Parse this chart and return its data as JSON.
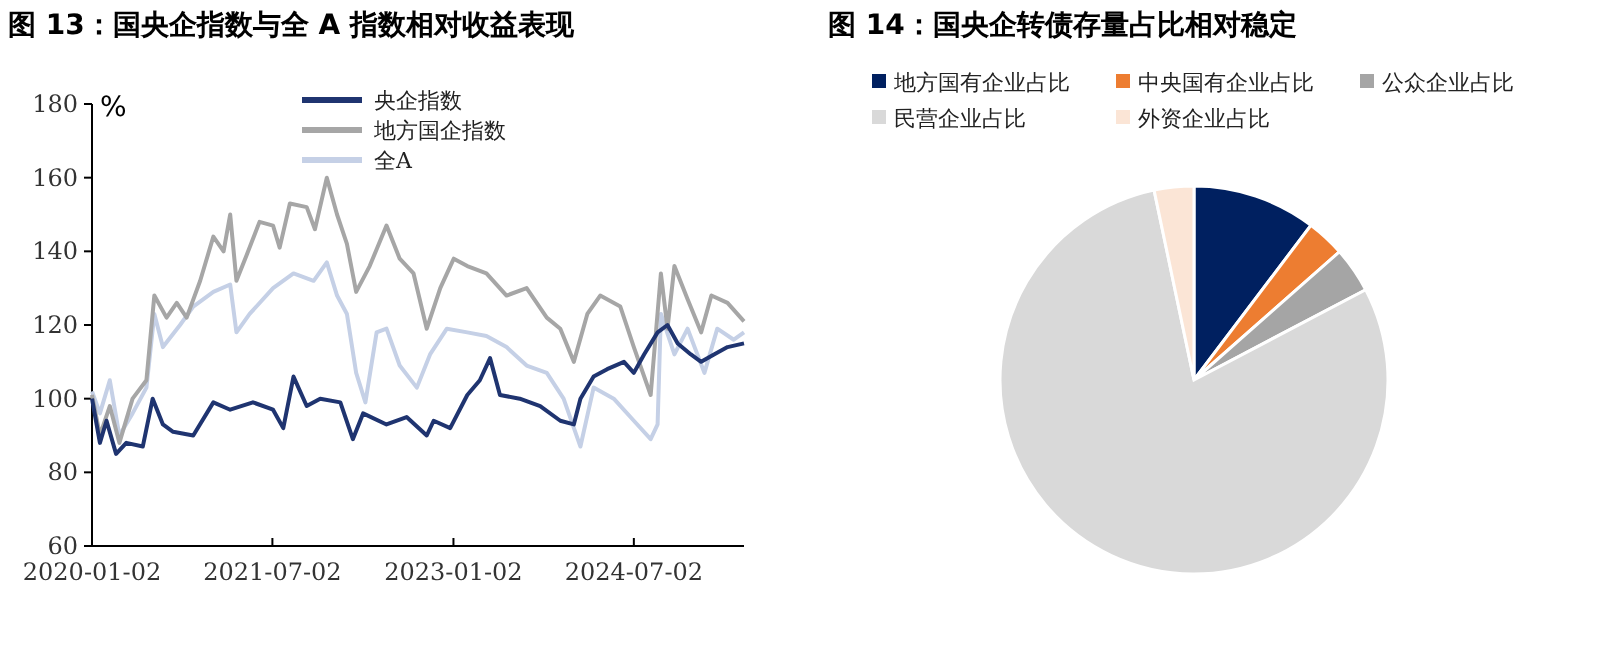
{
  "chart_data": [
    {
      "type": "line",
      "title": "图 13：国央企指数与全 A 指数相对收益表现",
      "ylabel": "%",
      "legend": "top",
      "grid": false,
      "xlim": [
        "2020-01-02",
        "2025-06-01"
      ],
      "xticks": [
        "2020-01-02",
        "2021-07-02",
        "2023-01-02",
        "2024-07-02"
      ],
      "ylim": [
        60,
        180
      ],
      "yticks": [
        60,
        80,
        100,
        120,
        140,
        160,
        180
      ],
      "series": [
        {
          "name": "央企指数",
          "color": "#1f3470",
          "x": [
            "2020-01-02",
            "2020-01-26",
            "2020-02-15",
            "2020-03-15",
            "2020-04-15",
            "2020-06-04",
            "2020-07-04",
            "2020-08-04",
            "2020-09-04",
            "2020-11-04",
            "2021-01-04",
            "2021-02-24",
            "2021-05-04",
            "2021-07-04",
            "2021-08-04",
            "2021-09-04",
            "2021-10-14",
            "2021-11-24",
            "2022-01-24",
            "2022-03-03",
            "2022-04-03",
            "2022-06-13",
            "2022-08-13",
            "2022-10-13",
            "2022-11-03",
            "2022-12-23",
            "2023-02-13",
            "2023-03-23",
            "2023-04-23",
            "2023-05-23",
            "2023-07-22",
            "2023-09-22",
            "2023-11-22",
            "2024-01-02",
            "2024-01-22",
            "2024-03-02",
            "2024-04-12",
            "2024-06-02",
            "2024-07-02",
            "2024-08-02",
            "2024-09-12",
            "2024-10-12",
            "2024-11-12",
            "2024-12-22",
            "2025-01-22",
            "2025-03-02",
            "2025-04-12",
            "2025-06-01"
          ],
          "values": [
            100,
            88,
            94,
            85,
            88,
            87,
            100,
            93,
            91,
            90,
            99,
            97,
            99,
            97,
            92,
            106,
            98,
            100,
            99,
            89,
            96,
            93,
            95,
            90,
            94,
            92,
            101,
            105,
            111,
            101,
            100,
            98,
            94,
            93,
            100,
            106,
            108,
            110,
            107,
            112,
            118,
            120,
            115,
            112,
            110,
            112,
            114,
            115
          ]
        },
        {
          "name": "地方国企指数",
          "color": "#a6a6a6",
          "x": [
            "2020-01-02",
            "2020-01-26",
            "2020-02-25",
            "2020-03-25",
            "2020-05-04",
            "2020-06-15",
            "2020-07-09",
            "2020-08-15",
            "2020-09-15",
            "2020-10-15",
            "2020-11-25",
            "2021-01-04",
            "2021-02-04",
            "2021-02-24",
            "2021-03-15",
            "2021-04-15",
            "2021-05-24",
            "2021-07-04",
            "2021-07-24",
            "2021-08-24",
            "2021-10-14",
            "2021-11-08",
            "2021-12-14",
            "2022-01-14",
            "2022-02-13",
            "2022-03-13",
            "2022-04-23",
            "2022-06-13",
            "2022-07-23",
            "2022-09-03",
            "2022-10-13",
            "2022-11-23",
            "2023-01-03",
            "2023-02-13",
            "2023-04-12",
            "2023-06-12",
            "2023-08-12",
            "2023-10-12",
            "2023-11-22",
            "2024-01-02",
            "2024-02-12",
            "2024-03-22",
            "2024-05-22",
            "2024-07-02",
            "2024-08-22",
            "2024-09-22",
            "2024-10-12",
            "2024-11-02",
            "2024-12-12",
            "2025-01-22",
            "2025-02-22",
            "2025-04-12",
            "2025-06-01"
          ],
          "values": [
            101,
            90,
            98,
            88,
            100,
            105,
            128,
            122,
            126,
            122,
            132,
            144,
            140,
            150,
            132,
            139,
            148,
            147,
            141,
            153,
            152,
            146,
            160,
            150,
            142,
            129,
            136,
            147,
            138,
            134,
            119,
            130,
            138,
            136,
            134,
            128,
            130,
            122,
            119,
            110,
            123,
            128,
            125,
            114,
            101,
            134,
            119,
            136,
            127,
            118,
            128,
            126,
            121
          ]
        },
        {
          "name": "全A",
          "color": "#c5d0e6",
          "x": [
            "2020-01-02",
            "2020-01-26",
            "2020-02-25",
            "2020-03-25",
            "2020-05-04",
            "2020-06-15",
            "2020-07-09",
            "2020-08-04",
            "2020-09-25",
            "2020-11-04",
            "2021-01-04",
            "2021-02-24",
            "2021-03-15",
            "2021-04-24",
            "2021-07-04",
            "2021-09-04",
            "2021-11-04",
            "2021-12-14",
            "2022-01-14",
            "2022-02-13",
            "2022-03-13",
            "2022-04-10",
            "2022-05-14",
            "2022-06-13",
            "2022-07-23",
            "2022-09-13",
            "2022-10-23",
            "2022-12-13",
            "2023-02-13",
            "2023-04-12",
            "2023-06-12",
            "2023-08-12",
            "2023-10-12",
            "2023-12-02",
            "2024-01-22",
            "2024-03-02",
            "2024-05-02",
            "2024-07-02",
            "2024-08-22",
            "2024-09-12",
            "2024-09-22",
            "2024-11-02",
            "2024-12-12",
            "2025-02-01",
            "2025-03-12",
            "2025-05-01",
            "2025-06-01"
          ],
          "values": [
            102,
            96,
            105,
            90,
            96,
            103,
            123,
            114,
            120,
            125,
            129,
            131,
            118,
            123,
            130,
            134,
            132,
            137,
            128,
            123,
            107,
            99,
            118,
            119,
            109,
            103,
            112,
            119,
            118,
            117,
            114,
            109,
            107,
            100,
            87,
            103,
            100,
            94,
            89,
            93,
            123,
            112,
            119,
            107,
            119,
            116,
            118
          ]
        }
      ]
    },
    {
      "type": "pie",
      "title": "图 14：国央企转债存量占比相对稳定",
      "legend": "top",
      "categories": [
        "地方国有企业占比",
        "中央国有企业占比",
        "公众企业占比",
        "民营企业占比",
        "外资企业占比"
      ],
      "values": [
        10.3,
        3.2,
        3.8,
        79.4,
        3.3
      ],
      "colors": [
        "#002060",
        "#ed7d31",
        "#a5a5a5",
        "#d9d9d9",
        "#fbe5d6"
      ]
    }
  ]
}
